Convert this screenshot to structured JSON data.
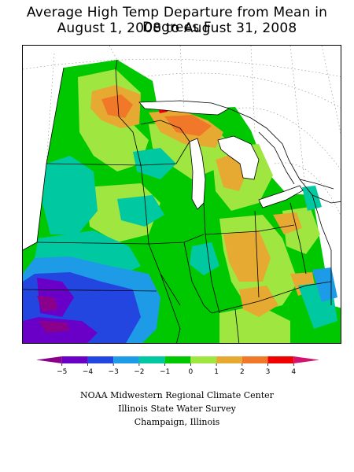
{
  "title": {
    "line1": "Average High Temp Departure from Mean in Degrees F",
    "line2": "August 1, 2008 to August 31, 2008"
  },
  "legend": {
    "ticks": [
      "−5",
      "−4",
      "−3",
      "−2",
      "−1",
      "0",
      "1",
      "2",
      "3",
      "4"
    ],
    "colors": [
      "#8b008b",
      "#6a00c8",
      "#2446e0",
      "#1e9be6",
      "#00c8a0",
      "#00c800",
      "#a0e640",
      "#e6aa32",
      "#f07828",
      "#f00000",
      "#d2146e"
    ]
  },
  "credits": {
    "line1": "NOAA Midwestern Regional Climate Center",
    "line2": "Illinois State Water Survey",
    "line3": "Champaign, Illinois"
  },
  "map_colors": {
    "green": "#00c800",
    "lime": "#a0e640",
    "teal": "#00c8a0",
    "sky": "#1e9be6",
    "blue": "#2446e0",
    "purple": "#6a00c8",
    "magenta": "#8b008b",
    "orange": "#e6aa32",
    "darkorange": "#f07828",
    "red": "#f00000"
  }
}
